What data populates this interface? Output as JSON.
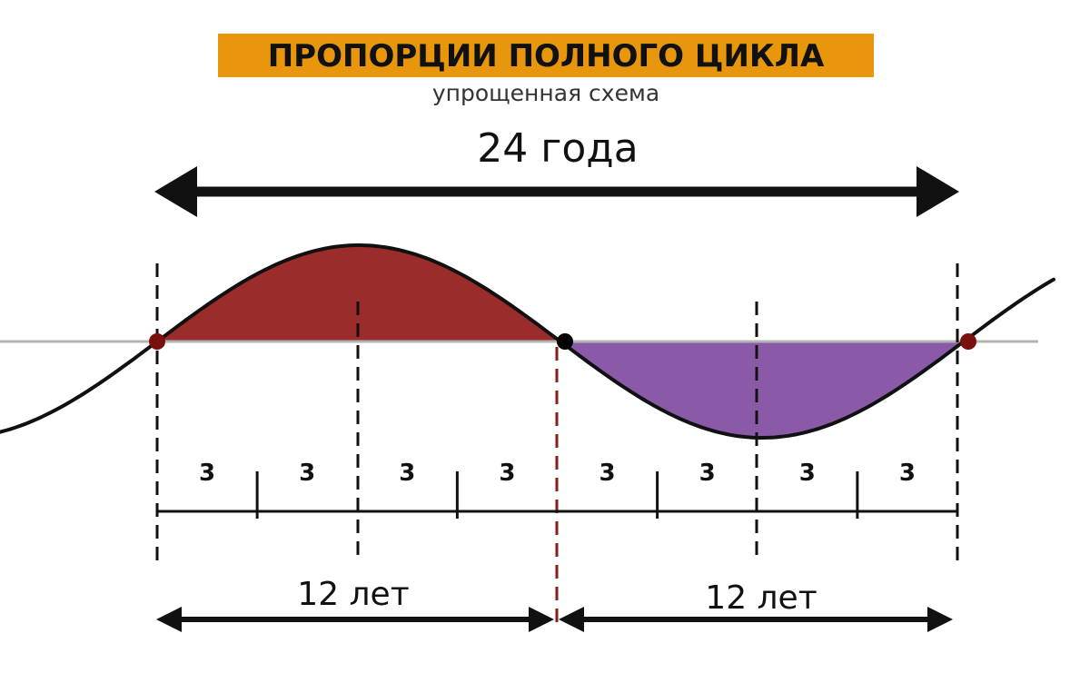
{
  "title": "ПРОПОРЦИИ ПОЛНОГО ЦИКЛА",
  "subtitle": "упрощенная схема",
  "total_label": "24 года",
  "half_labels": [
    "12 лет",
    "12 лет"
  ],
  "segment_labels": [
    "3",
    "3",
    "3",
    "3",
    "3",
    "3",
    "3",
    "3"
  ],
  "colors": {
    "banner": "#e8960c",
    "expansion": "#9b2c2c",
    "contraction": "#8a5aa8",
    "baseline": "#b3b3b3",
    "curve": "#111111",
    "mid_divider": "#8b1a1a",
    "endpoint_dot": "#7a0f0f",
    "mid_dot": "#000000"
  }
}
